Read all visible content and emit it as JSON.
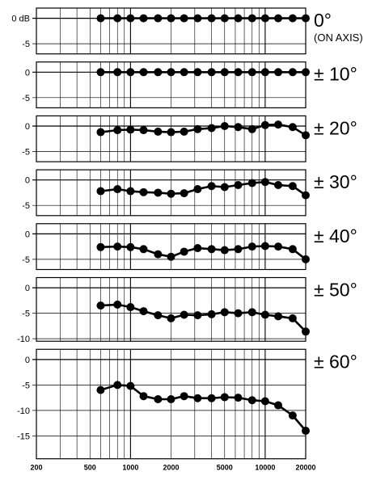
{
  "chart_data": {
    "type": "line",
    "x_scale": "log",
    "xlim": [
      200,
      20000
    ],
    "x_tick_labels": [
      "200",
      "500",
      "1000",
      "2000",
      "5000",
      "10000",
      "20000"
    ],
    "x_ticks": [
      200,
      500,
      1000,
      2000,
      5000,
      10000,
      20000
    ],
    "x": [
      600,
      800,
      1000,
      1250,
      1600,
      2000,
      2500,
      3150,
      4000,
      5000,
      6300,
      8000,
      10000,
      12500,
      16000,
      20000
    ],
    "grid": true,
    "panels": [
      {
        "angle_label": "0°",
        "angle_sublabel": "(ON AXIS)",
        "ylim": [
          -7,
          2
        ],
        "y_ticks": [
          0,
          -5
        ],
        "y_tick_labels": [
          "0 dB",
          "-5"
        ],
        "values": [
          0,
          0,
          0,
          0,
          0,
          0,
          0,
          0,
          0,
          0,
          0,
          0,
          0,
          0,
          0,
          0
        ]
      },
      {
        "angle_label": "± 10°",
        "angle_sublabel": "",
        "ylim": [
          -7,
          2
        ],
        "y_ticks": [
          0,
          -5
        ],
        "y_tick_labels": [
          "0",
          "-5"
        ],
        "values": [
          0,
          0,
          0,
          0,
          0,
          0,
          0,
          0,
          0,
          0,
          0,
          0,
          0,
          0,
          0,
          0
        ]
      },
      {
        "angle_label": "± 20°",
        "angle_sublabel": "",
        "ylim": [
          -7,
          2
        ],
        "y_ticks": [
          0,
          -5
        ],
        "y_tick_labels": [
          "0",
          "-5"
        ],
        "values": [
          -1.2,
          -0.8,
          -0.7,
          -0.8,
          -1.1,
          -1.2,
          -1.1,
          -0.6,
          -0.4,
          0,
          -0.2,
          -0.6,
          0.2,
          0.3,
          -0.2,
          -1.8
        ]
      },
      {
        "angle_label": "± 30°",
        "angle_sublabel": "",
        "ylim": [
          -7,
          2
        ],
        "y_ticks": [
          0,
          -5
        ],
        "y_tick_labels": [
          "0",
          "-5"
        ],
        "values": [
          -2.2,
          -1.8,
          -2.2,
          -2.4,
          -2.5,
          -2.7,
          -2.6,
          -1.8,
          -1.2,
          -1.4,
          -1.0,
          -0.6,
          -0.4,
          -1.0,
          -1.2,
          -3.0
        ]
      },
      {
        "angle_label": "± 40°",
        "angle_sublabel": "",
        "ylim": [
          -7,
          2
        ],
        "y_ticks": [
          0,
          -5
        ],
        "y_tick_labels": [
          "0",
          "-5"
        ],
        "values": [
          -2.6,
          -2.5,
          -2.6,
          -3.0,
          -4.0,
          -4.5,
          -3.5,
          -2.8,
          -3.0,
          -3.2,
          -3.0,
          -2.5,
          -2.4,
          -2.5,
          -3.0,
          -5.0
        ]
      },
      {
        "angle_label": "± 50°",
        "angle_sublabel": "",
        "ylim": [
          -10.5,
          2
        ],
        "y_ticks": [
          0,
          -5,
          -10
        ],
        "y_tick_labels": [
          "0",
          "-5",
          "-10"
        ],
        "values": [
          -3.5,
          -3.3,
          -3.8,
          -4.6,
          -5.4,
          -6.0,
          -5.3,
          -5.4,
          -5.2,
          -4.8,
          -5.0,
          -4.8,
          -5.3,
          -5.6,
          -6.0,
          -8.6
        ]
      },
      {
        "angle_label": "± 60°",
        "angle_sublabel": "",
        "ylim": [
          -19.5,
          2
        ],
        "y_ticks": [
          0,
          -5,
          -10,
          -15
        ],
        "y_tick_labels": [
          "0",
          "-5",
          "-10",
          "-15"
        ],
        "values": [
          -6.0,
          -5.0,
          -5.2,
          -7.2,
          -7.8,
          -7.8,
          -7.2,
          -7.6,
          -7.6,
          -7.4,
          -7.5,
          -8.0,
          -8.2,
          -9.0,
          -11.0,
          -14.0
        ]
      }
    ]
  }
}
